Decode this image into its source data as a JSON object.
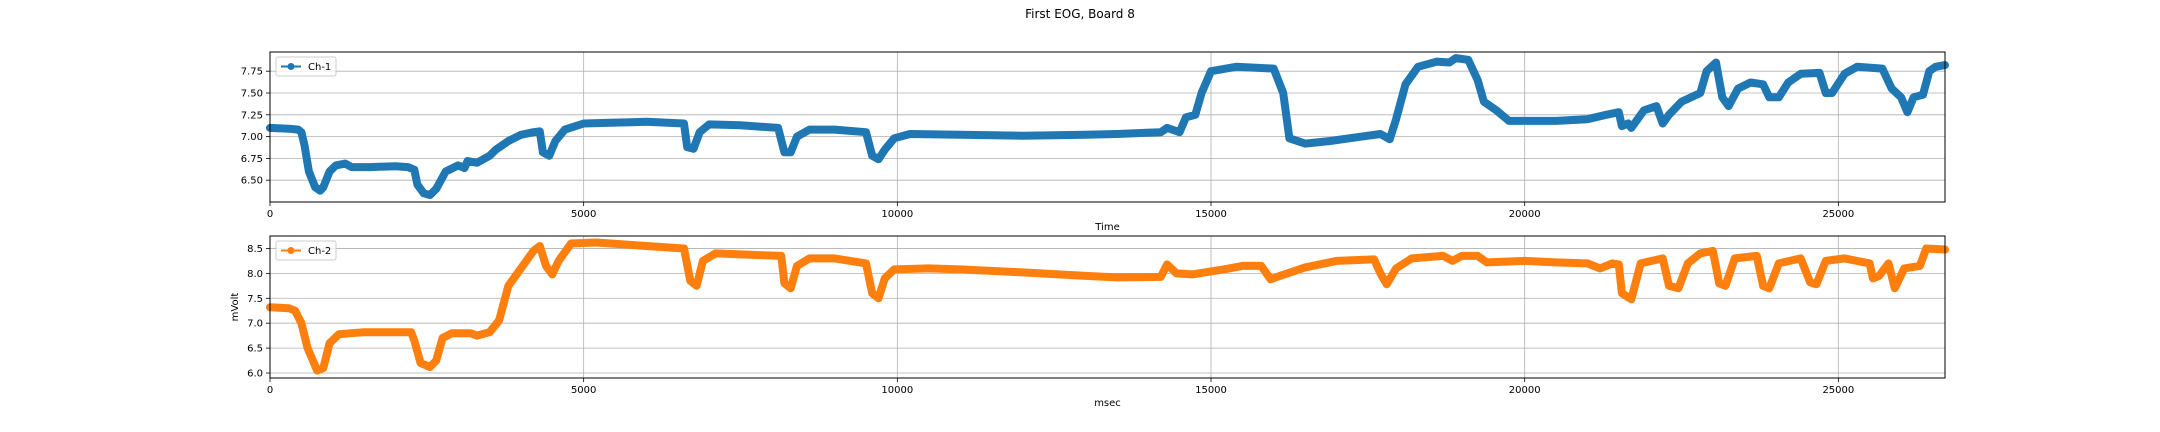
{
  "figure": {
    "title": "First EOG, Board 8"
  },
  "chart_data": [
    {
      "type": "line",
      "title": "",
      "xlabel": "Time",
      "ylabel": "",
      "xlim": [
        0,
        26700
      ],
      "ylim": [
        6.25,
        7.97
      ],
      "xticks": [
        0,
        5000,
        10000,
        15000,
        20000,
        25000
      ],
      "yticks": [
        6.5,
        6.75,
        7.0,
        7.25,
        7.5,
        7.75
      ],
      "ytick_labels": [
        "6.50",
        "6.75",
        "7.00",
        "7.25",
        "7.50",
        "7.75"
      ],
      "grid": true,
      "legend": "upper-left",
      "series": [
        {
          "name": "Ch-1",
          "color": "#1f77b4",
          "points": [
            [
              0,
              7.1
            ],
            [
              300,
              7.09
            ],
            [
              450,
              7.08
            ],
            [
              500,
              7.05
            ],
            [
              550,
              6.9
            ],
            [
              620,
              6.6
            ],
            [
              720,
              6.42
            ],
            [
              800,
              6.38
            ],
            [
              850,
              6.42
            ],
            [
              950,
              6.6
            ],
            [
              1050,
              6.67
            ],
            [
              1200,
              6.69
            ],
            [
              1300,
              6.65
            ],
            [
              1600,
              6.65
            ],
            [
              2000,
              6.66
            ],
            [
              2200,
              6.65
            ],
            [
              2300,
              6.62
            ],
            [
              2350,
              6.45
            ],
            [
              2450,
              6.35
            ],
            [
              2550,
              6.33
            ],
            [
              2650,
              6.4
            ],
            [
              2800,
              6.6
            ],
            [
              3000,
              6.67
            ],
            [
              3100,
              6.64
            ],
            [
              3150,
              6.72
            ],
            [
              3300,
              6.7
            ],
            [
              3500,
              6.78
            ],
            [
              3600,
              6.85
            ],
            [
              3800,
              6.95
            ],
            [
              4000,
              7.02
            ],
            [
              4200,
              7.05
            ],
            [
              4300,
              7.06
            ],
            [
              4350,
              6.82
            ],
            [
              4450,
              6.78
            ],
            [
              4550,
              6.95
            ],
            [
              4700,
              7.08
            ],
            [
              5000,
              7.15
            ],
            [
              5500,
              7.16
            ],
            [
              6000,
              7.17
            ],
            [
              6600,
              7.15
            ],
            [
              6650,
              6.88
            ],
            [
              6750,
              6.86
            ],
            [
              6850,
              7.05
            ],
            [
              7000,
              7.14
            ],
            [
              7500,
              7.13
            ],
            [
              8100,
              7.1
            ],
            [
              8200,
              6.82
            ],
            [
              8300,
              6.82
            ],
            [
              8400,
              7.0
            ],
            [
              8600,
              7.08
            ],
            [
              9000,
              7.08
            ],
            [
              9500,
              7.05
            ],
            [
              9600,
              6.78
            ],
            [
              9700,
              6.74
            ],
            [
              9800,
              6.85
            ],
            [
              9950,
              6.98
            ],
            [
              10200,
              7.03
            ],
            [
              11000,
              7.02
            ],
            [
              12000,
              7.01
            ],
            [
              13000,
              7.02
            ],
            [
              13500,
              7.03
            ],
            [
              14200,
              7.05
            ],
            [
              14300,
              7.1
            ],
            [
              14500,
              7.05
            ],
            [
              14600,
              7.22
            ],
            [
              14750,
              7.25
            ],
            [
              14850,
              7.5
            ],
            [
              15000,
              7.75
            ],
            [
              15400,
              7.8
            ],
            [
              16000,
              7.78
            ],
            [
              16150,
              7.5
            ],
            [
              16250,
              6.98
            ],
            [
              16500,
              6.92
            ],
            [
              16900,
              6.95
            ],
            [
              17400,
              7.0
            ],
            [
              17700,
              7.03
            ],
            [
              17850,
              6.97
            ],
            [
              17950,
              7.2
            ],
            [
              18100,
              7.6
            ],
            [
              18300,
              7.8
            ],
            [
              18600,
              7.86
            ],
            [
              18800,
              7.85
            ],
            [
              18900,
              7.9
            ],
            [
              19100,
              7.88
            ],
            [
              19250,
              7.65
            ],
            [
              19350,
              7.4
            ],
            [
              19550,
              7.3
            ],
            [
              19750,
              7.18
            ],
            [
              20500,
              7.18
            ],
            [
              21000,
              7.2
            ],
            [
              21300,
              7.25
            ],
            [
              21500,
              7.28
            ],
            [
              21550,
              7.12
            ],
            [
              21650,
              7.15
            ],
            [
              21700,
              7.1
            ],
            [
              21800,
              7.2
            ],
            [
              21900,
              7.3
            ],
            [
              22100,
              7.35
            ],
            [
              22200,
              7.15
            ],
            [
              22300,
              7.25
            ],
            [
              22500,
              7.4
            ],
            [
              22800,
              7.5
            ],
            [
              22900,
              7.75
            ],
            [
              23050,
              7.85
            ],
            [
              23150,
              7.45
            ],
            [
              23250,
              7.35
            ],
            [
              23400,
              7.55
            ],
            [
              23600,
              7.62
            ],
            [
              23800,
              7.6
            ],
            [
              23900,
              7.45
            ],
            [
              24050,
              7.45
            ],
            [
              24200,
              7.62
            ],
            [
              24400,
              7.72
            ],
            [
              24700,
              7.73
            ],
            [
              24800,
              7.5
            ],
            [
              24900,
              7.5
            ],
            [
              25100,
              7.72
            ],
            [
              25300,
              7.8
            ],
            [
              25700,
              7.78
            ],
            [
              25850,
              7.55
            ],
            [
              26000,
              7.45
            ],
            [
              26100,
              7.28
            ],
            [
              26200,
              7.45
            ],
            [
              26350,
              7.48
            ],
            [
              26450,
              7.75
            ],
            [
              26550,
              7.8
            ],
            [
              26700,
              7.82
            ]
          ]
        }
      ]
    },
    {
      "type": "line",
      "title": "",
      "xlabel": "msec",
      "ylabel": "mVolt",
      "xlim": [
        0,
        26700
      ],
      "ylim": [
        5.9,
        8.75
      ],
      "xticks": [
        0,
        5000,
        10000,
        15000,
        20000,
        25000
      ],
      "yticks": [
        6.0,
        6.5,
        7.0,
        7.5,
        8.0,
        8.5
      ],
      "ytick_labels": [
        "6.0",
        "6.5",
        "7.0",
        "7.5",
        "8.0",
        "8.5"
      ],
      "grid": true,
      "legend": "upper-left",
      "series": [
        {
          "name": "Ch-2",
          "color": "#ff7f0e",
          "points": [
            [
              0,
              7.32
            ],
            [
              300,
              7.3
            ],
            [
              400,
              7.25
            ],
            [
              500,
              7.0
            ],
            [
              600,
              6.5
            ],
            [
              750,
              6.05
            ],
            [
              850,
              6.1
            ],
            [
              950,
              6.6
            ],
            [
              1100,
              6.78
            ],
            [
              1500,
              6.82
            ],
            [
              2000,
              6.82
            ],
            [
              2250,
              6.82
            ],
            [
              2300,
              6.65
            ],
            [
              2400,
              6.2
            ],
            [
              2550,
              6.12
            ],
            [
              2650,
              6.25
            ],
            [
              2750,
              6.7
            ],
            [
              2900,
              6.8
            ],
            [
              3200,
              6.8
            ],
            [
              3300,
              6.75
            ],
            [
              3500,
              6.82
            ],
            [
              3650,
              7.05
            ],
            [
              3800,
              7.75
            ],
            [
              4000,
              8.1
            ],
            [
              4200,
              8.45
            ],
            [
              4300,
              8.55
            ],
            [
              4400,
              8.15
            ],
            [
              4500,
              7.98
            ],
            [
              4600,
              8.25
            ],
            [
              4800,
              8.6
            ],
            [
              5200,
              8.62
            ],
            [
              6000,
              8.55
            ],
            [
              6600,
              8.5
            ],
            [
              6700,
              7.85
            ],
            [
              6800,
              7.75
            ],
            [
              6900,
              8.25
            ],
            [
              7100,
              8.4
            ],
            [
              7500,
              8.38
            ],
            [
              8150,
              8.35
            ],
            [
              8200,
              7.8
            ],
            [
              8300,
              7.7
            ],
            [
              8400,
              8.15
            ],
            [
              8600,
              8.3
            ],
            [
              9000,
              8.3
            ],
            [
              9500,
              8.2
            ],
            [
              9600,
              7.6
            ],
            [
              9700,
              7.5
            ],
            [
              9800,
              7.9
            ],
            [
              9950,
              8.08
            ],
            [
              10500,
              8.1
            ],
            [
              11000,
              8.08
            ],
            [
              12000,
              8.02
            ],
            [
              13000,
              7.95
            ],
            [
              13500,
              7.92
            ],
            [
              14200,
              7.93
            ],
            [
              14300,
              8.18
            ],
            [
              14450,
              8.0
            ],
            [
              14700,
              7.98
            ],
            [
              14900,
              8.02
            ],
            [
              15200,
              8.08
            ],
            [
              15500,
              8.15
            ],
            [
              15800,
              8.15
            ],
            [
              15950,
              7.88
            ],
            [
              16100,
              7.95
            ],
            [
              16500,
              8.12
            ],
            [
              17000,
              8.25
            ],
            [
              17600,
              8.28
            ],
            [
              17700,
              8.0
            ],
            [
              17800,
              7.78
            ],
            [
              17950,
              8.1
            ],
            [
              18200,
              8.3
            ],
            [
              18700,
              8.35
            ],
            [
              18850,
              8.25
            ],
            [
              19000,
              8.35
            ],
            [
              19250,
              8.35
            ],
            [
              19400,
              8.22
            ],
            [
              20000,
              8.25
            ],
            [
              20500,
              8.22
            ],
            [
              21000,
              8.2
            ],
            [
              21200,
              8.1
            ],
            [
              21400,
              8.2
            ],
            [
              21500,
              8.18
            ],
            [
              21550,
              7.6
            ],
            [
              21700,
              7.48
            ],
            [
              21850,
              8.2
            ],
            [
              22200,
              8.3
            ],
            [
              22300,
              7.75
            ],
            [
              22450,
              7.7
            ],
            [
              22600,
              8.2
            ],
            [
              22800,
              8.4
            ],
            [
              23000,
              8.45
            ],
            [
              23100,
              7.8
            ],
            [
              23200,
              7.75
            ],
            [
              23350,
              8.3
            ],
            [
              23700,
              8.35
            ],
            [
              23800,
              7.75
            ],
            [
              23900,
              7.7
            ],
            [
              24050,
              8.2
            ],
            [
              24400,
              8.3
            ],
            [
              24550,
              7.82
            ],
            [
              24650,
              7.78
            ],
            [
              24800,
              8.25
            ],
            [
              25100,
              8.3
            ],
            [
              25500,
              8.2
            ],
            [
              25550,
              7.9
            ],
            [
              25650,
              7.95
            ],
            [
              25800,
              8.2
            ],
            [
              25900,
              7.7
            ],
            [
              26050,
              8.1
            ],
            [
              26300,
              8.15
            ],
            [
              26400,
              8.5
            ],
            [
              26700,
              8.48
            ]
          ]
        }
      ]
    }
  ]
}
